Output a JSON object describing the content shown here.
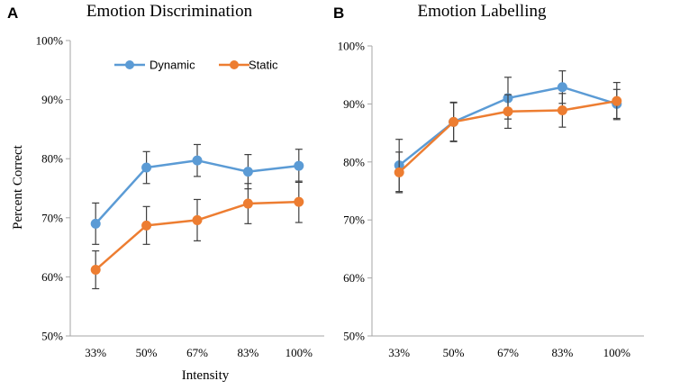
{
  "colors": {
    "dynamic": "#5B9BD5",
    "static": "#ED7D31",
    "axis": "#A6A6A6",
    "errorbar": "#404040"
  },
  "chart_data": [
    {
      "type": "line",
      "panel": "A",
      "title": "Emotion Discrimination",
      "xlabel": "Intensity",
      "ylabel": "Percent Correct",
      "categories": [
        "33%",
        "50%",
        "67%",
        "83%",
        "100%"
      ],
      "ylim": [
        50,
        100
      ],
      "yticks": [
        50,
        60,
        70,
        80,
        90,
        100
      ],
      "ytick_labels": [
        "50%",
        "60%",
        "70%",
        "80%",
        "90%",
        "100%"
      ],
      "grid": false,
      "legend": {
        "position": "top-left",
        "entries": [
          "Dynamic",
          "Static"
        ]
      },
      "series": [
        {
          "name": "Dynamic",
          "values": [
            69.0,
            78.5,
            79.7,
            77.8,
            78.8
          ],
          "errors": [
            3.5,
            2.7,
            2.7,
            2.9,
            2.8
          ]
        },
        {
          "name": "Static",
          "values": [
            61.2,
            68.7,
            69.6,
            72.4,
            72.7
          ],
          "errors": [
            3.2,
            3.2,
            3.5,
            3.4,
            3.5
          ]
        }
      ]
    },
    {
      "type": "line",
      "panel": "B",
      "title": "Emotion Labelling",
      "xlabel": "",
      "ylabel": "",
      "categories": [
        "33%",
        "50%",
        "67%",
        "83%",
        "100%"
      ],
      "ylim": [
        50,
        100
      ],
      "yticks": [
        50,
        60,
        70,
        80,
        90,
        100
      ],
      "ytick_labels": [
        "50%",
        "60%",
        "70%",
        "80%",
        "90%",
        "100%"
      ],
      "grid": false,
      "legend": null,
      "series": [
        {
          "name": "Dynamic",
          "values": [
            79.4,
            86.9,
            91.0,
            92.9,
            90.0
          ],
          "errors": [
            4.5,
            3.3,
            3.6,
            2.8,
            2.5
          ]
        },
        {
          "name": "Static",
          "values": [
            78.2,
            86.9,
            88.7,
            88.9,
            90.5
          ],
          "errors": [
            3.5,
            3.4,
            2.9,
            2.9,
            3.2
          ]
        }
      ]
    }
  ]
}
